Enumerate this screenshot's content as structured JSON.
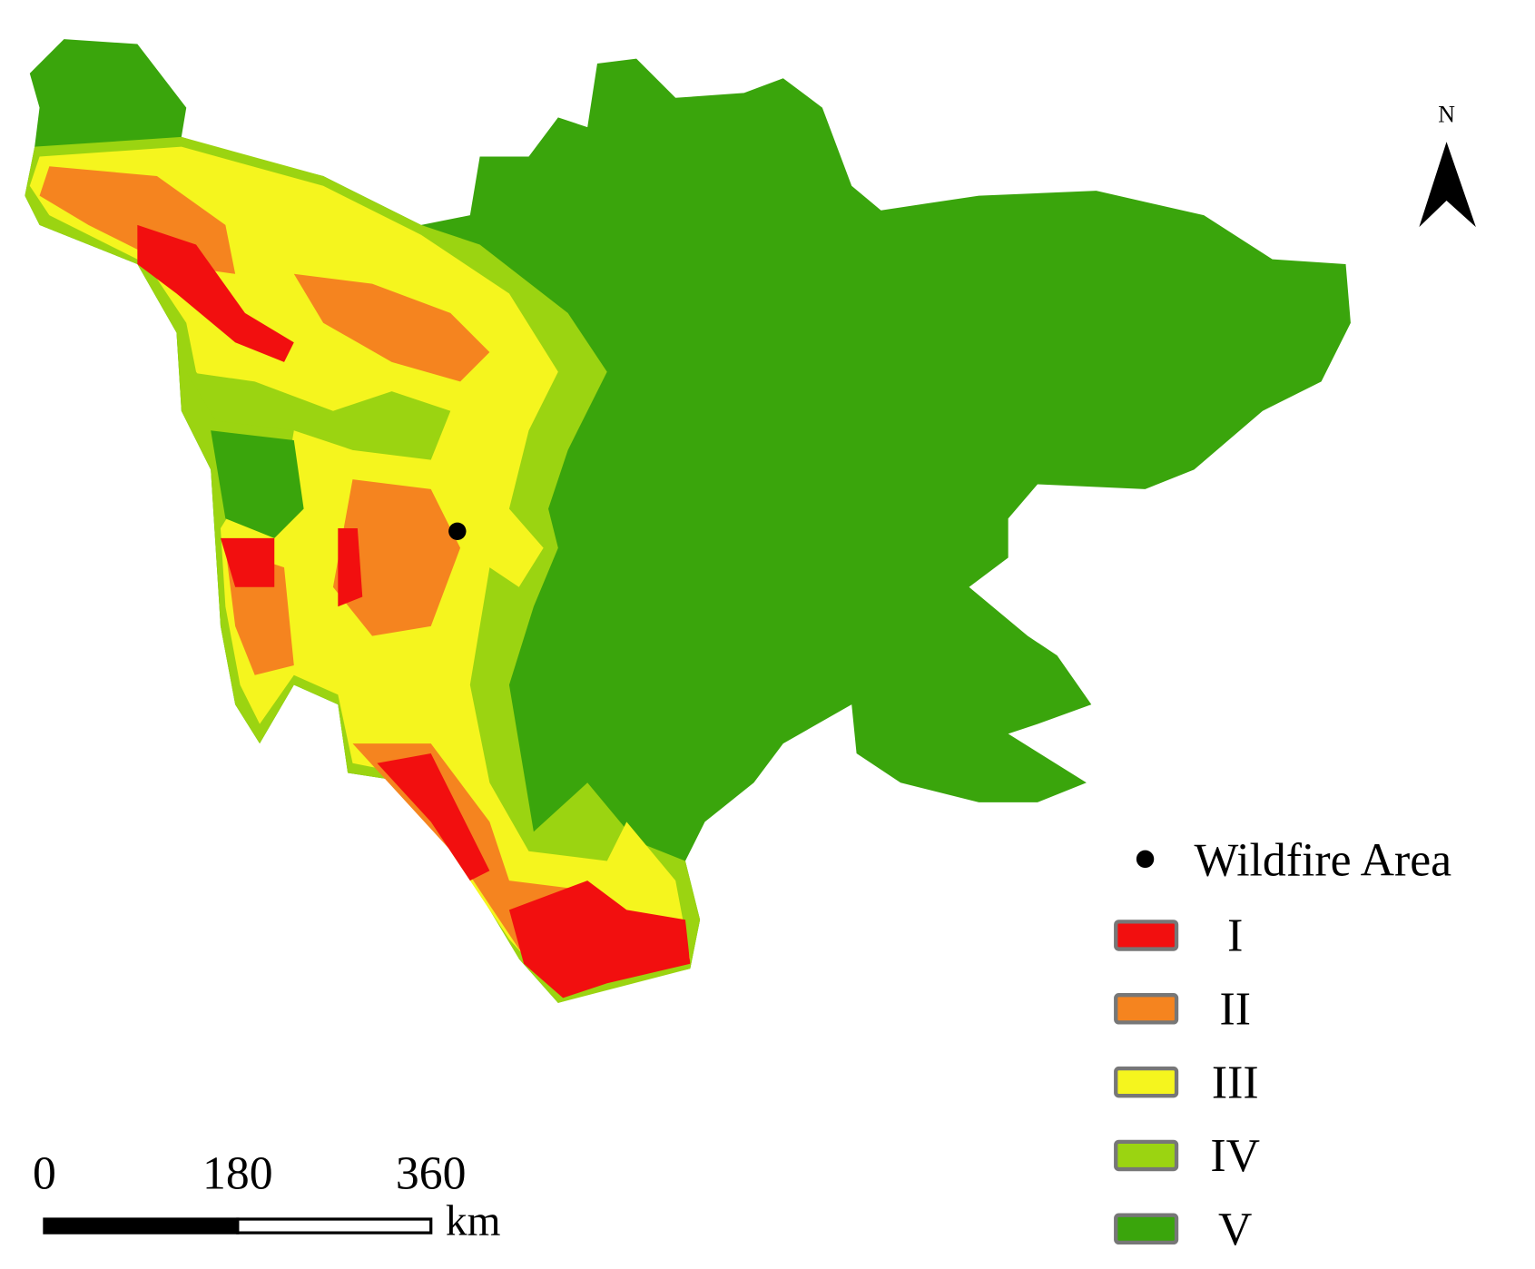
{
  "map": {
    "north_label": "N",
    "scale_bar": {
      "ticks": [
        0,
        180,
        360
      ],
      "unit": "km"
    },
    "legend": {
      "point_label": "Wildfire Area",
      "classes": [
        {
          "label": "I",
          "color": "#f20f0f"
        },
        {
          "label": "II",
          "color": "#f5841f"
        },
        {
          "label": "III",
          "color": "#f5f51e"
        },
        {
          "label": "IV",
          "color": "#9bd411"
        },
        {
          "label": "V",
          "color": "#3aa50c"
        }
      ]
    }
  }
}
